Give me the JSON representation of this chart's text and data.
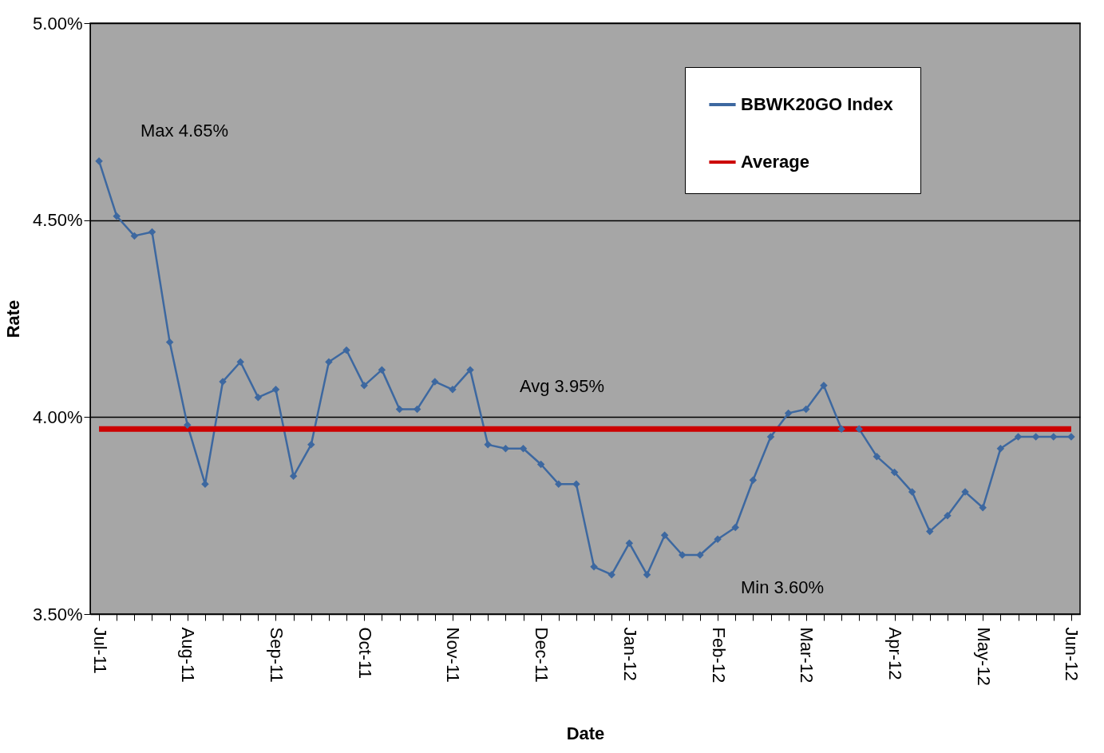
{
  "chart_data": {
    "type": "line",
    "xlabel": "Date",
    "ylabel": "Rate",
    "categories": [
      "Jul-11",
      null,
      null,
      null,
      null,
      "Aug-11",
      null,
      null,
      null,
      null,
      "Sep-11",
      null,
      null,
      null,
      null,
      "Oct-11",
      null,
      null,
      null,
      null,
      "Nov-11",
      null,
      null,
      null,
      null,
      "Dec-11",
      null,
      null,
      null,
      null,
      "Jan-12",
      null,
      null,
      null,
      null,
      "Feb-12",
      null,
      null,
      null,
      null,
      "Mar-12",
      null,
      null,
      null,
      null,
      "Apr-12",
      null,
      null,
      null,
      null,
      "May-12",
      null,
      null,
      null,
      null,
      "Jun-12"
    ],
    "series": [
      {
        "name": "BBWK20GO  Index",
        "color": "#3d68a0",
        "marker": "diamond",
        "values": [
          4.65,
          4.51,
          4.46,
          4.47,
          4.19,
          3.98,
          3.83,
          4.09,
          4.14,
          4.05,
          4.07,
          3.85,
          3.93,
          4.14,
          4.17,
          4.08,
          4.12,
          4.02,
          4.02,
          4.09,
          4.07,
          4.12,
          3.93,
          3.92,
          3.92,
          3.88,
          3.83,
          3.83,
          3.62,
          3.6,
          3.68,
          3.6,
          3.7,
          3.65,
          3.65,
          3.69,
          3.72,
          3.84,
          3.95,
          4.01,
          4.02,
          4.08,
          3.97,
          3.97,
          3.9,
          3.86,
          3.81,
          3.71,
          3.75,
          3.81,
          3.77,
          3.92,
          3.95,
          3.95,
          3.95,
          3.95
        ]
      },
      {
        "name": "Average",
        "color": "#cc0000",
        "marker": "none",
        "values": [
          3.97,
          3.97,
          3.97,
          3.97,
          3.97,
          3.97,
          3.97,
          3.97,
          3.97,
          3.97,
          3.97,
          3.97,
          3.97,
          3.97,
          3.97,
          3.97,
          3.97,
          3.97,
          3.97,
          3.97,
          3.97,
          3.97,
          3.97,
          3.97,
          3.97,
          3.97,
          3.97,
          3.97,
          3.97,
          3.97,
          3.97,
          3.97,
          3.97,
          3.97,
          3.97,
          3.97,
          3.97,
          3.97,
          3.97,
          3.97,
          3.97,
          3.97,
          3.97,
          3.97,
          3.97,
          3.97,
          3.97,
          3.97,
          3.97,
          3.97,
          3.97,
          3.97,
          3.97,
          3.97,
          3.97,
          3.97
        ]
      }
    ],
    "ylim": [
      3.5,
      5.0
    ],
    "yticks": [
      {
        "value": 3.5,
        "label": "3.50%"
      },
      {
        "value": 4.0,
        "label": "4.00%"
      },
      {
        "value": 4.5,
        "label": "4.50%"
      },
      {
        "value": 5.0,
        "label": "5.00%"
      }
    ],
    "annotations": [
      "Max 4.65%",
      "Avg 3.95%",
      "Min 3.60%"
    ],
    "grid": "y",
    "legend": "top right",
    "line_style": "solid"
  }
}
